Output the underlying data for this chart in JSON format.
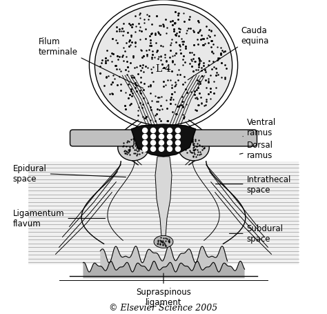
{
  "background_color": "#ffffff",
  "labels": {
    "filum_terminale": "Filum\nterminale",
    "cauda_equina": "Cauda\nequina",
    "L4": "L-4",
    "ventral_ramus": "Ventral\nramus",
    "dorsal_ramus": "Dorsal\nramus",
    "epidural_space": "Epidural\nspace",
    "intrathecal_space": "Intrathecal\nspace",
    "ligamentum_flavum": "Ligamentum\nflavum",
    "subdural_space": "Subdural\nspace",
    "supraspinous_ligament": "Supraspinous\nligament",
    "copyright": "© Elsevier Science 2005"
  },
  "font_size_labels": 8.5,
  "font_size_L4": 10,
  "font_size_copyright": 9,
  "fig_width": 4.74,
  "fig_height": 4.56,
  "dpi": 100
}
